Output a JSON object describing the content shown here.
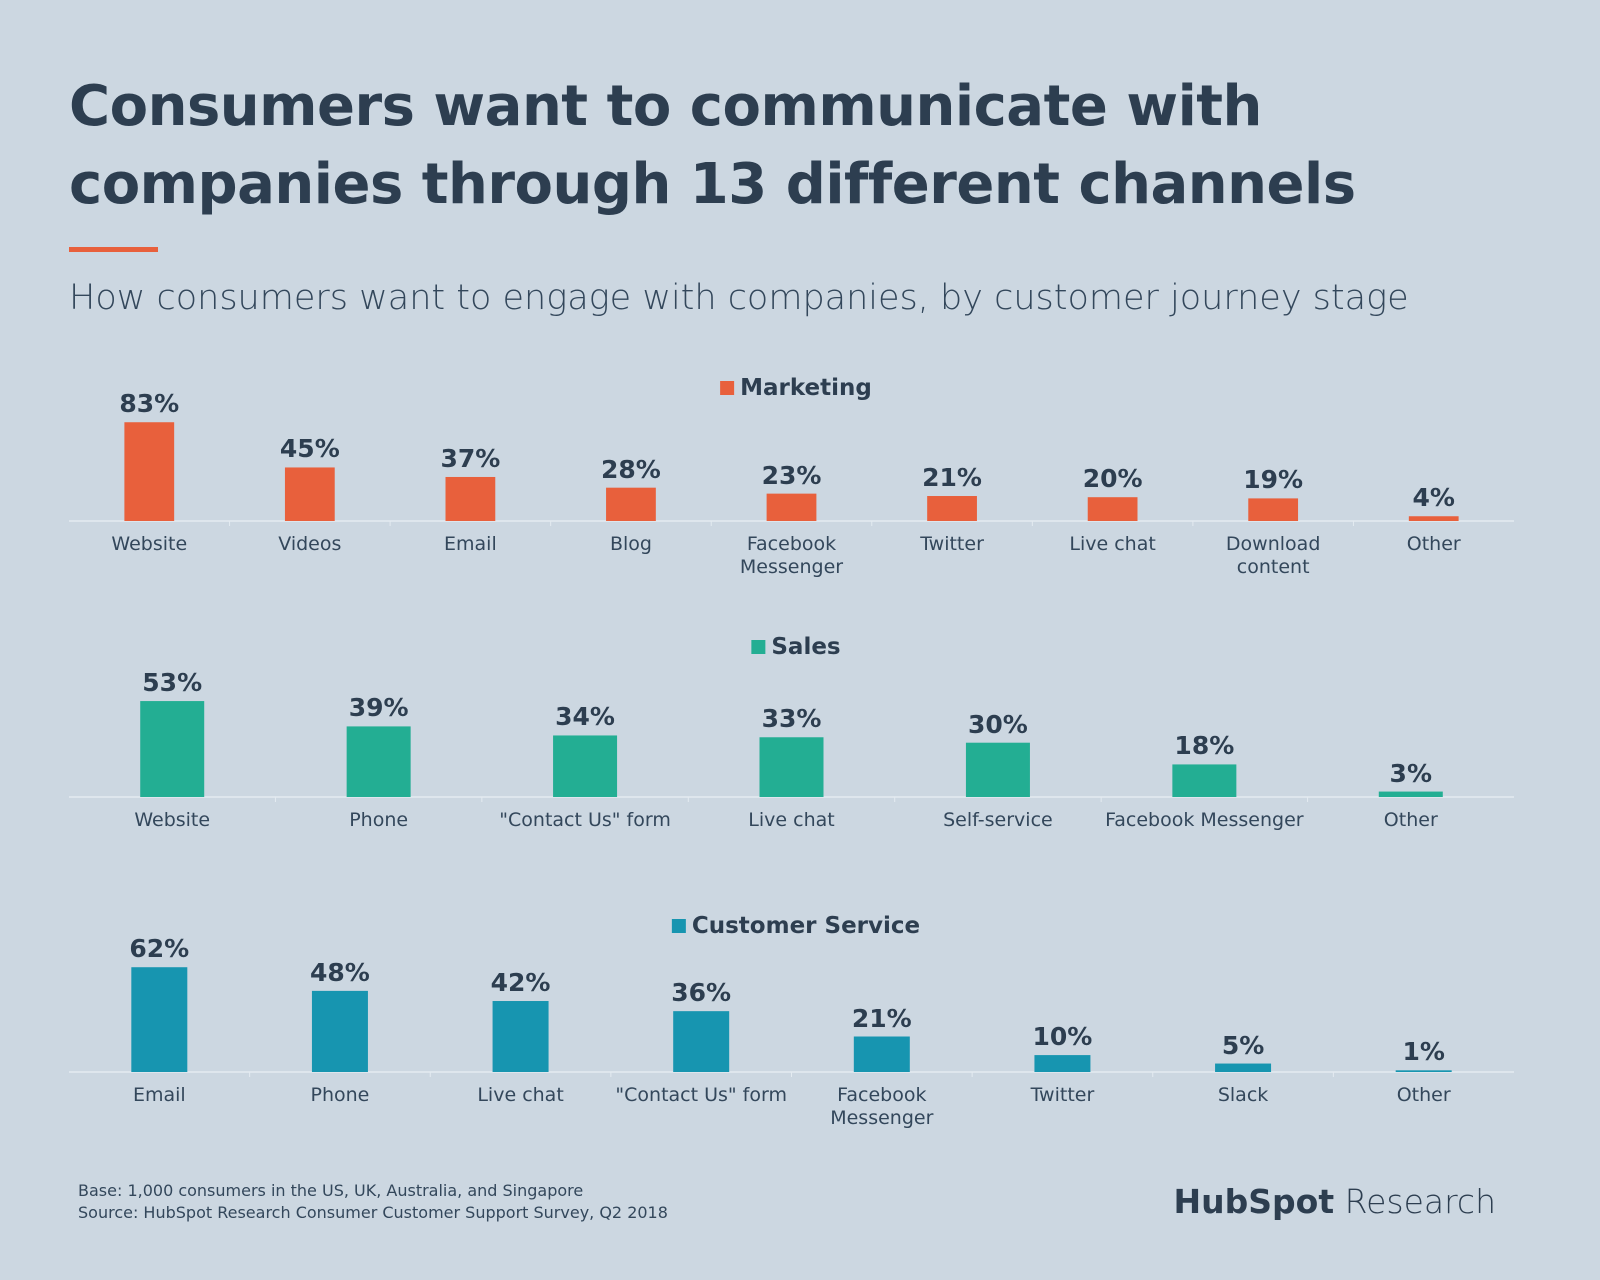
{
  "title": "Consumers want to communicate with\ncompanies through 13 different channels",
  "subtitle": "How consumers want to engage with companies, by customer journey stage",
  "chart_data": [
    {
      "type": "bar",
      "ylim": [
        0,
        100
      ],
      "categories": [
        "Website",
        "Videos",
        "Email",
        "Blog",
        "Facebook\nMessenger",
        "Twitter",
        "Live chat",
        "Download\ncontent",
        "Other"
      ],
      "series": [
        {
          "name": "Marketing",
          "color": "#e8603c",
          "values": [
            83,
            45,
            37,
            28,
            23,
            21,
            20,
            19,
            4
          ],
          "value_labels": [
            "83%",
            "45%",
            "37%",
            "28%",
            "23%",
            "21%",
            "20%",
            "19%",
            "4%"
          ]
        }
      ]
    },
    {
      "type": "bar",
      "ylim": [
        0,
        100
      ],
      "categories": [
        "Website",
        "Phone",
        "\"Contact Us\" form",
        "Live chat",
        "Self-service",
        "Facebook Messenger",
        "Other"
      ],
      "series": [
        {
          "name": "Sales",
          "color": "#23ae93",
          "values": [
            53,
            39,
            34,
            33,
            30,
            18,
            3
          ],
          "value_labels": [
            "53%",
            "39%",
            "34%",
            "33%",
            "30%",
            "18%",
            "3%"
          ]
        }
      ]
    },
    {
      "type": "bar",
      "ylim": [
        0,
        100
      ],
      "categories": [
        "Email",
        "Phone",
        "Live chat",
        "\"Contact Us\" form",
        "Facebook\nMessenger",
        "Twitter",
        "Slack",
        "Other"
      ],
      "series": [
        {
          "name": "Customer Service",
          "color": "#1795b0",
          "values": [
            62,
            48,
            42,
            36,
            21,
            10,
            5,
            1
          ],
          "value_labels": [
            "62%",
            "48%",
            "42%",
            "36%",
            "21%",
            "10%",
            "5%",
            "1%"
          ]
        }
      ]
    }
  ],
  "footnotes": [
    "Base: 1,000 consumers in the US, UK, Australia, and Singapore",
    "Source: HubSpot Research Consumer Customer Support Survey, Q2 2018"
  ],
  "logo": {
    "brand": "HubSpot",
    "product": "Research"
  }
}
